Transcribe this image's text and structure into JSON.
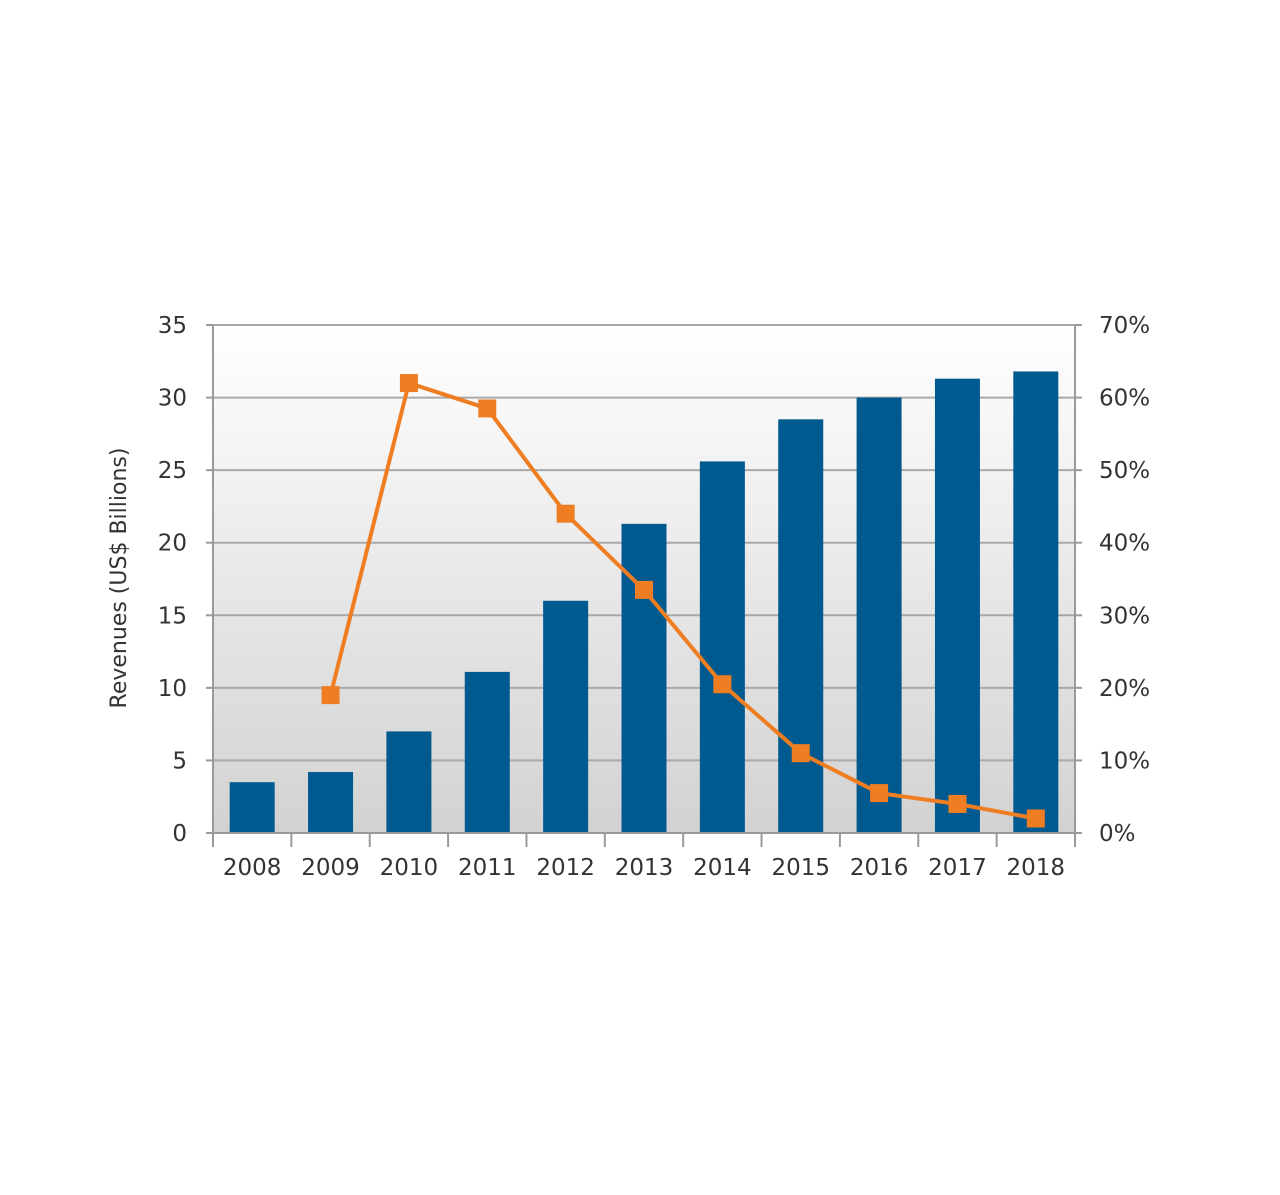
{
  "chart_data": {
    "type": "bar",
    "categories": [
      "2008",
      "2009",
      "2010",
      "2011",
      "2012",
      "2013",
      "2014",
      "2015",
      "2016",
      "2017",
      "2018"
    ],
    "series": [
      {
        "type": "bar",
        "axis": "left",
        "color": "#00598f",
        "values": [
          3.5,
          4.2,
          7.0,
          11.1,
          16.0,
          21.3,
          25.6,
          28.5,
          30.0,
          31.3,
          31.8
        ]
      },
      {
        "type": "line",
        "axis": "right",
        "color": "#ef7d22",
        "marker": "square",
        "values": [
          null,
          19,
          62,
          58.5,
          44,
          33.5,
          20.5,
          11,
          5.5,
          4,
          2
        ]
      }
    ],
    "ylabel": "Revenues (US$ Billions)",
    "ylim": [
      0,
      35
    ],
    "y_ticks": [
      0,
      5,
      10,
      15,
      20,
      25,
      30,
      35
    ],
    "y2lim": [
      0,
      70
    ],
    "y2_ticks": [
      "0%",
      "10%",
      "20%",
      "30%",
      "40%",
      "50%",
      "60%",
      "70%"
    ],
    "grid": true,
    "legend": "none",
    "background_gradient": [
      "#ffffff",
      "#d2d2d2"
    ]
  }
}
